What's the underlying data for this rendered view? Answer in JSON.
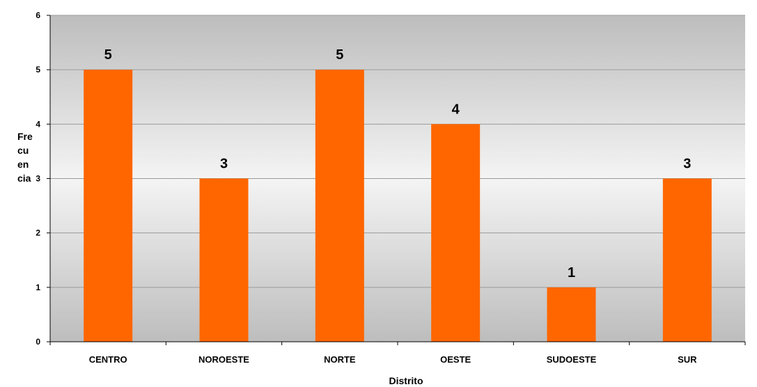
{
  "chart_data": {
    "type": "bar",
    "categories": [
      "CENTRO",
      "NOROESTE",
      "NORTE",
      "OESTE",
      "SUDOESTE",
      "SUR"
    ],
    "values": [
      5,
      3,
      5,
      4,
      1,
      3
    ],
    "data_labels": [
      "5",
      "3",
      "5",
      "4",
      "1",
      "3"
    ],
    "title": "",
    "xlabel": "Distrito",
    "ylabel_lines": [
      "Fre",
      "cu",
      "en",
      "cia"
    ],
    "ylim": [
      0,
      6
    ],
    "yticks": [
      "0",
      "1",
      "2",
      "3",
      "4",
      "5",
      "6"
    ],
    "grid": true,
    "legend": "none",
    "colors": {
      "bar": "#FF6600",
      "plot_bg_top": "#BDBDBD",
      "plot_bg_mid": "#F4F4F4",
      "gridline": "#9A9A9A",
      "axis": "#000000"
    }
  }
}
